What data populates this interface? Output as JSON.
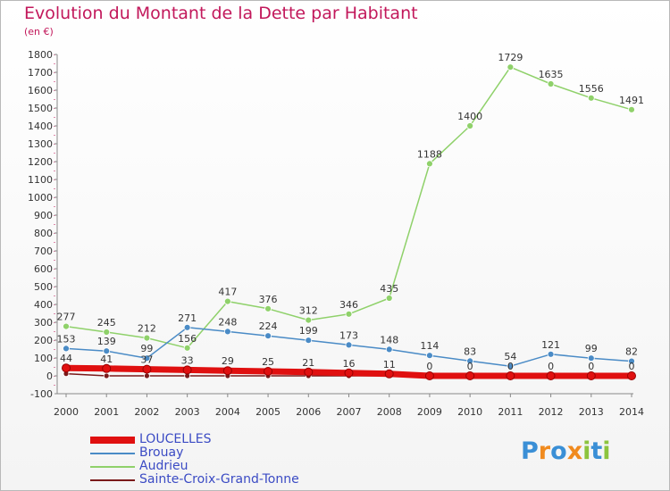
{
  "title": "Evolution du Montant de la Dette par Habitant",
  "subtitle": "(en €)",
  "logo": {
    "text": "Proxiti",
    "letters": [
      {
        "ch": "P",
        "color": "#3a8fd6"
      },
      {
        "ch": "r",
        "color": "#f08a1e"
      },
      {
        "ch": "o",
        "color": "#3a8fd6"
      },
      {
        "ch": "x",
        "color": "#f08a1e"
      },
      {
        "ch": "i",
        "color": "#8cc43e"
      },
      {
        "ch": "t",
        "color": "#3a8fd6"
      },
      {
        "ch": "i",
        "color": "#8cc43e"
      }
    ]
  },
  "chart_data": {
    "type": "line",
    "title": "Evolution du Montant de la Dette par Habitant",
    "subtitle": "(en €)",
    "x": [
      "2000",
      "2001",
      "2002",
      "2003",
      "2004",
      "2005",
      "2006",
      "2007",
      "2008",
      "2009",
      "2010",
      "2011",
      "2012",
      "2013",
      "2014"
    ],
    "ylim": [
      -100,
      1800
    ],
    "ytick_step": 100,
    "grid": false,
    "legend_position": "bottom-left",
    "series": [
      {
        "name": "LOUCELLES",
        "color": "#e01010",
        "values": [
          44,
          41,
          37,
          33,
          29,
          25,
          21,
          16,
          11,
          0,
          0,
          0,
          0,
          0,
          0
        ],
        "labels": [
          "44",
          "41",
          "37",
          "33",
          "29",
          "25",
          "21",
          "16",
          "11",
          "0",
          "0",
          "0",
          "0",
          "0",
          "0"
        ]
      },
      {
        "name": "Brouay",
        "color": "#4a8bc6",
        "values": [
          153,
          139,
          99,
          271,
          248,
          224,
          199,
          173,
          148,
          114,
          83,
          54,
          121,
          99,
          82
        ],
        "labels": [
          "153",
          "139",
          "99",
          "271",
          "248",
          "224",
          "199",
          "173",
          "148",
          "114",
          "83",
          "54",
          "121",
          "99",
          "82"
        ]
      },
      {
        "name": "Audrieu",
        "color": "#8fd16a",
        "values": [
          277,
          245,
          212,
          156,
          417,
          376,
          312,
          346,
          435,
          1188,
          1400,
          1729,
          1635,
          1556,
          1491
        ],
        "labels": [
          "277",
          "245",
          "212",
          "156",
          "417",
          "376",
          "312",
          "346",
          "435",
          "1188",
          "1400",
          "1729",
          "1635",
          "1556",
          "1491"
        ]
      },
      {
        "name": "Sainte-Croix-Grand-Tonne",
        "color": "#7a1a1a",
        "values": [
          12,
          0,
          0,
          0,
          0,
          0,
          0,
          0,
          0,
          0,
          0,
          0,
          0,
          0,
          0
        ],
        "labels": []
      }
    ]
  }
}
